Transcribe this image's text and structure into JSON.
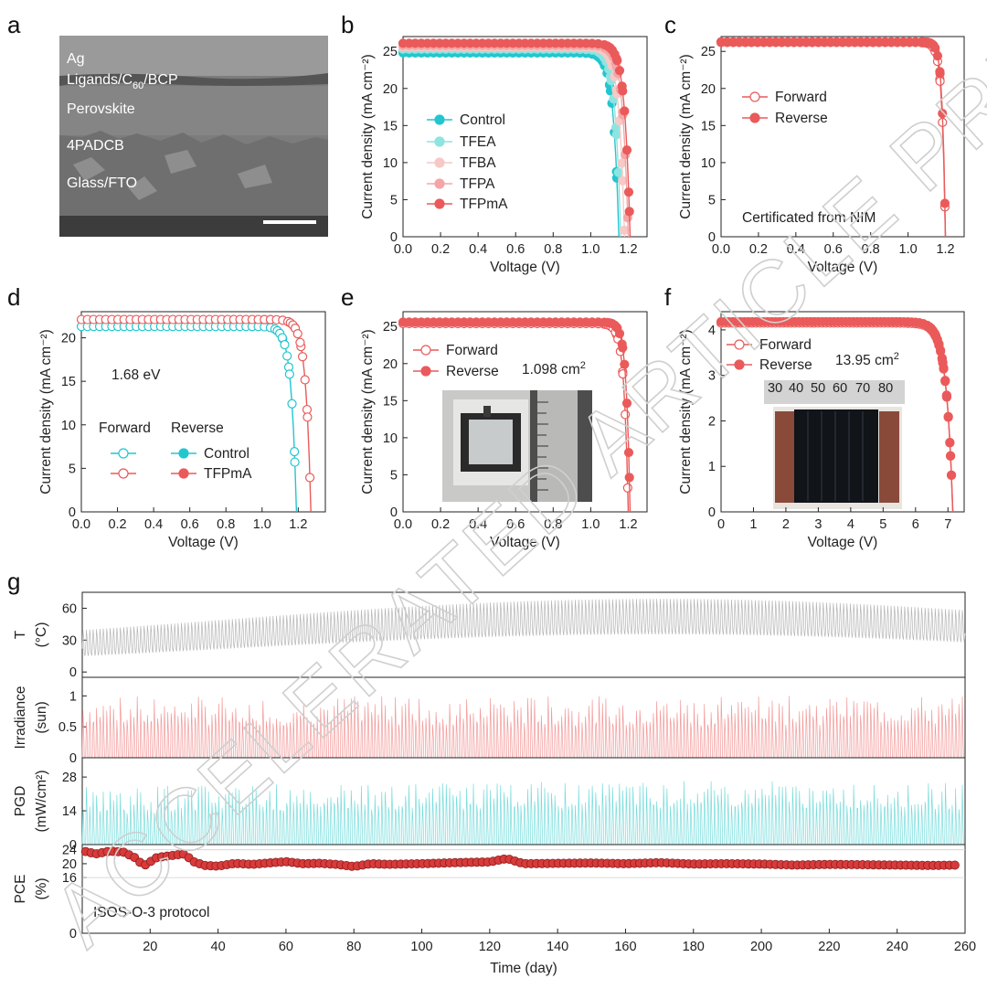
{
  "watermark": "ACCELERATED ARTICLE PREVIEW",
  "colors": {
    "control": "#22c6cf",
    "tfea": "#8ee4e0",
    "tfba": "#f6c9c6",
    "tfpa": "#f4a6a6",
    "tfpma": "#ea5a5a",
    "temp": "#b5b5b5",
    "irr": "#f39a9a",
    "pgd": "#78dcdc",
    "pce": "#d93a3a"
  },
  "panels": {
    "a": {
      "label": "a",
      "layers": [
        "Ag",
        "Ligands/C60/BCP",
        "Perovskite",
        "4PADCB",
        "Glass/FTO"
      ],
      "layer_c60_parts": [
        "Ligands/C",
        "60",
        "/BCP"
      ]
    },
    "b": {
      "label": "b"
    },
    "c": {
      "label": "c",
      "note": "Certificated from NIM"
    },
    "d": {
      "label": "d",
      "note": "1.68 eV",
      "legend_head": [
        "Forward",
        "Reverse"
      ]
    },
    "e": {
      "label": "e",
      "area": "1.098 cm",
      "area_sup": "2"
    },
    "f": {
      "label": "f",
      "area": "13.95 cm",
      "area_sup": "2",
      "ruler_ticks": [
        "30",
        "40",
        "50",
        "60",
        "70",
        "80"
      ]
    },
    "g": {
      "label": "g",
      "protocol": "ISOS-O-3 protocol"
    }
  },
  "chart_data": [
    {
      "id": "b",
      "type": "line",
      "xlabel": "Voltage (V)",
      "ylabel": "Current density (mA cm⁻²)",
      "xlim": [
        0,
        1.3
      ],
      "ylim": [
        0,
        27
      ],
      "xticks": [
        "0.0",
        "0.2",
        "0.4",
        "0.6",
        "0.8",
        "1.0",
        "1.2"
      ],
      "yticks": [
        "0",
        "5",
        "10",
        "15",
        "20",
        "25"
      ],
      "legend": "middle-left",
      "series": [
        {
          "name": "Control",
          "jsc": 24.8,
          "voc": 1.15
        },
        {
          "name": "TFEA",
          "jsc": 25.3,
          "voc": 1.16
        },
        {
          "name": "TFBA",
          "jsc": 25.6,
          "voc": 1.18
        },
        {
          "name": "TFPA",
          "jsc": 25.8,
          "voc": 1.2
        },
        {
          "name": "TFPmA",
          "jsc": 26.1,
          "voc": 1.21
        }
      ]
    },
    {
      "id": "c",
      "type": "line",
      "xlabel": "Voltage (V)",
      "ylabel": "Current density (mA cm⁻²)",
      "xlim": [
        0,
        1.3
      ],
      "ylim": [
        0,
        27
      ],
      "xticks": [
        "0.0",
        "0.2",
        "0.4",
        "0.6",
        "0.8",
        "1.0",
        "1.2"
      ],
      "yticks": [
        "0",
        "5",
        "10",
        "15",
        "20",
        "25"
      ],
      "legend": "upper-left",
      "series": [
        {
          "name": "Forward",
          "jsc": 26.2,
          "voc": 1.2
        },
        {
          "name": "Reverse",
          "jsc": 26.3,
          "voc": 1.2
        }
      ]
    },
    {
      "id": "d",
      "type": "line",
      "xlabel": "Voltage (V)",
      "ylabel": "Current density (mA cm⁻²)",
      "xlim": [
        0,
        1.35
      ],
      "ylim": [
        0,
        23
      ],
      "xticks": [
        "0.0",
        "0.2",
        "0.4",
        "0.6",
        "0.8",
        "1.0",
        "1.2"
      ],
      "yticks": [
        "0",
        "5",
        "10",
        "15",
        "20"
      ],
      "legend": "lower-left",
      "series": [
        {
          "name": "Control",
          "jsc": 21.3,
          "voc": 1.19
        },
        {
          "name": "TFPmA",
          "jsc": 22.1,
          "voc": 1.27
        }
      ]
    },
    {
      "id": "e",
      "type": "line",
      "xlabel": "Voltage (V)",
      "ylabel": "Current density (mA cm⁻²)",
      "xlim": [
        0,
        1.3
      ],
      "ylim": [
        0,
        27
      ],
      "xticks": [
        "0.0",
        "0.2",
        "0.4",
        "0.6",
        "0.8",
        "1.0",
        "1.2"
      ],
      "yticks": [
        "0",
        "5",
        "10",
        "15",
        "20",
        "25"
      ],
      "legend": "upper-left",
      "series": [
        {
          "name": "Forward",
          "jsc": 25.4,
          "voc": 1.2
        },
        {
          "name": "Reverse",
          "jsc": 25.6,
          "voc": 1.21
        }
      ]
    },
    {
      "id": "f",
      "type": "line",
      "xlabel": "Voltage (V)",
      "ylabel": "Current density (mA cm⁻²)",
      "xlim": [
        0,
        7.5
      ],
      "ylim": [
        0,
        4.4
      ],
      "xticks": [
        "0",
        "1",
        "2",
        "3",
        "4",
        "5",
        "6",
        "7"
      ],
      "yticks": [
        "0",
        "1",
        "2",
        "3",
        "4"
      ],
      "legend": "upper-left",
      "series": [
        {
          "name": "Forward",
          "jsc": 4.15,
          "voc": 7.15
        },
        {
          "name": "Reverse",
          "jsc": 4.18,
          "voc": 7.15
        }
      ]
    },
    {
      "id": "g",
      "type": "line",
      "xlabel": "Time (day)",
      "xlim": [
        0,
        260
      ],
      "xticks": [
        "20",
        "40",
        "60",
        "80",
        "100",
        "120",
        "140",
        "160",
        "180",
        "200",
        "220",
        "240",
        "260"
      ],
      "series": [
        {
          "name": "T",
          "ylabel": "T",
          "unit": "(°C)",
          "ylim": [
            -5,
            75
          ],
          "yticks": [
            "0",
            "30",
            "60"
          ]
        },
        {
          "name": "Irradiance",
          "ylabel": "Irradiance",
          "unit": "(sun)",
          "ylim": [
            0,
            1.3
          ],
          "yticks": [
            "0",
            "0.5",
            "1"
          ]
        },
        {
          "name": "PGD",
          "ylabel": "PGD",
          "unit": "(mW/cm²)",
          "ylim": [
            0,
            36
          ],
          "yticks": [
            "0",
            "14",
            "28"
          ]
        },
        {
          "name": "PCE",
          "ylabel": "PCE",
          "unit": "(%)",
          "ylim": [
            0,
            25.5
          ],
          "yticks": [
            "0",
            "16",
            "20",
            "24"
          ],
          "values": [
            [
              1,
              23.5
            ],
            [
              4,
              22.8
            ],
            [
              8,
              23.6
            ],
            [
              12,
              23.4
            ],
            [
              16,
              21.5
            ],
            [
              18,
              19.3
            ],
            [
              22,
              21.8
            ],
            [
              26,
              22.3
            ],
            [
              30,
              22.8
            ],
            [
              33,
              20.5
            ],
            [
              36,
              19.5
            ],
            [
              40,
              19.3
            ],
            [
              45,
              20.1
            ],
            [
              50,
              19.8
            ],
            [
              55,
              20.2
            ],
            [
              60,
              20.6
            ],
            [
              65,
              20.0
            ],
            [
              70,
              20.1
            ],
            [
              75,
              19.8
            ],
            [
              80,
              19.2
            ],
            [
              85,
              20.0
            ],
            [
              90,
              19.8
            ],
            [
              100,
              20.0
            ],
            [
              110,
              20.3
            ],
            [
              120,
              20.5
            ],
            [
              125,
              21.5
            ],
            [
              130,
              20.0
            ],
            [
              140,
              20.1
            ],
            [
              150,
              20.2
            ],
            [
              160,
              20.0
            ],
            [
              170,
              20.3
            ],
            [
              180,
              19.9
            ],
            [
              190,
              20.0
            ],
            [
              200,
              19.9
            ],
            [
              210,
              19.6
            ],
            [
              220,
              19.8
            ],
            [
              230,
              19.7
            ],
            [
              240,
              19.6
            ],
            [
              250,
              19.5
            ],
            [
              258,
              19.6
            ]
          ]
        }
      ]
    }
  ]
}
